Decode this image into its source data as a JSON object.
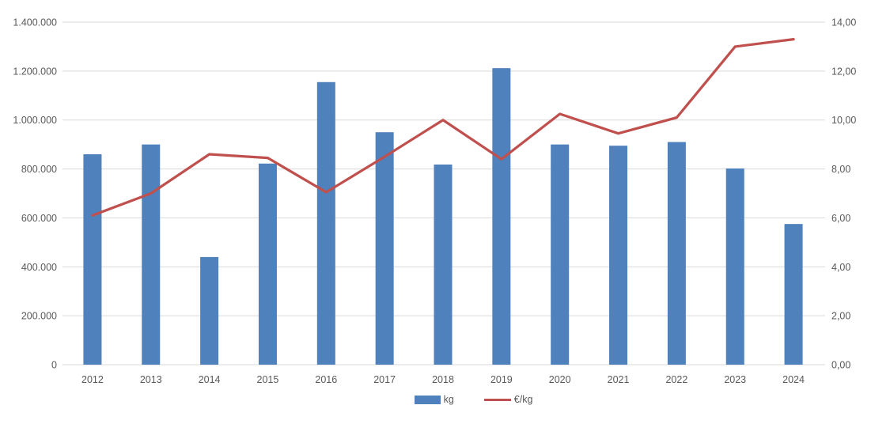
{
  "chart_data": {
    "type": "bar",
    "title": "",
    "xlabel": "",
    "ylabel": "",
    "grid": true,
    "legend_position": "bottom",
    "categories": [
      "2012",
      "2013",
      "2014",
      "2015",
      "2016",
      "2017",
      "2018",
      "2019",
      "2020",
      "2021",
      "2022",
      "2023",
      "2024"
    ],
    "series": [
      {
        "name": "kg",
        "type": "bar",
        "axis": "left",
        "color": "#4f81bd",
        "values": [
          860000,
          900000,
          440000,
          822000,
          1155000,
          950000,
          818000,
          1212000,
          900000,
          895000,
          910000,
          802000,
          575000
        ]
      },
      {
        "name": "€/kg",
        "type": "line",
        "axis": "right",
        "color": "#c0504d",
        "values": [
          6.1,
          7.0,
          8.6,
          8.45,
          7.05,
          8.5,
          10.0,
          8.4,
          10.25,
          9.45,
          10.1,
          13.0,
          13.3
        ]
      }
    ],
    "left_axis": {
      "min": 0,
      "max": 1400000,
      "step": 200000,
      "tick_labels": [
        "0",
        "200.000",
        "400.000",
        "600.000",
        "800.000",
        "1.000.000",
        "1.200.000",
        "1.400.000"
      ]
    },
    "right_axis": {
      "min": 0,
      "max": 14,
      "step": 2,
      "tick_labels": [
        "0,00",
        "2,00",
        "4,00",
        "6,00",
        "8,00",
        "10,00",
        "12,00",
        "14,00"
      ]
    },
    "colors": {
      "gridline": "#d9d9d9",
      "text": "#595959",
      "background": "#ffffff"
    }
  }
}
